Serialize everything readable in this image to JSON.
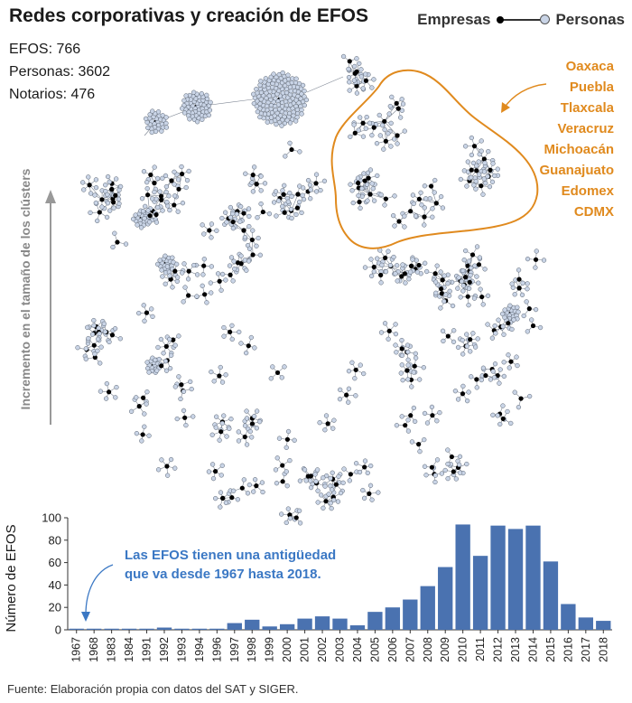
{
  "title": "Redes corporativas y creación de EFOS",
  "legend": {
    "left": "Empresas",
    "right": "Personas",
    "company_color": "#000000",
    "person_color": "#c9d4e6"
  },
  "stats": [
    "EFOS: 766",
    "Personas: 3602",
    "Notarios: 476"
  ],
  "highlight_states": [
    "Oaxaca",
    "Puebla",
    "Tlaxcala",
    "Veracruz",
    "Michoacán",
    "Guanajuato",
    "Edomex",
    "CDMX"
  ],
  "highlight_color": "#e08a1e",
  "network_axis_label": "Incremento en el tamaño de los clústers",
  "annotation": [
    "Las EFOS tienen una antigüedad",
    "que va desde 1967 hasta 2018."
  ],
  "source": "Fuente: Elaboración propia con datos del SAT y SIGER.",
  "chart_data": {
    "type": "bar",
    "ylabel": "Número de EFOS",
    "xlabel": "",
    "ylim": [
      0,
      100
    ],
    "yticks": [
      0,
      20,
      40,
      60,
      80,
      100
    ],
    "bar_color": "#4a72b0",
    "categories": [
      "1967",
      "1968",
      "1983",
      "1984",
      "1991",
      "1992",
      "1993",
      "1994",
      "1996",
      "1997",
      "1998",
      "1999",
      "2000",
      "2001",
      "2002",
      "2003",
      "2004",
      "2005",
      "2006",
      "2007",
      "2008",
      "2009",
      "2010",
      "2011",
      "2012",
      "2013",
      "2014",
      "2015",
      "2016",
      "2017",
      "2018"
    ],
    "values": [
      1,
      1,
      1,
      1,
      1,
      2,
      1,
      1,
      1,
      6,
      9,
      3,
      5,
      10,
      12,
      10,
      4,
      16,
      20,
      27,
      39,
      56,
      94,
      66,
      93,
      90,
      93,
      61,
      23,
      11,
      8
    ]
  }
}
